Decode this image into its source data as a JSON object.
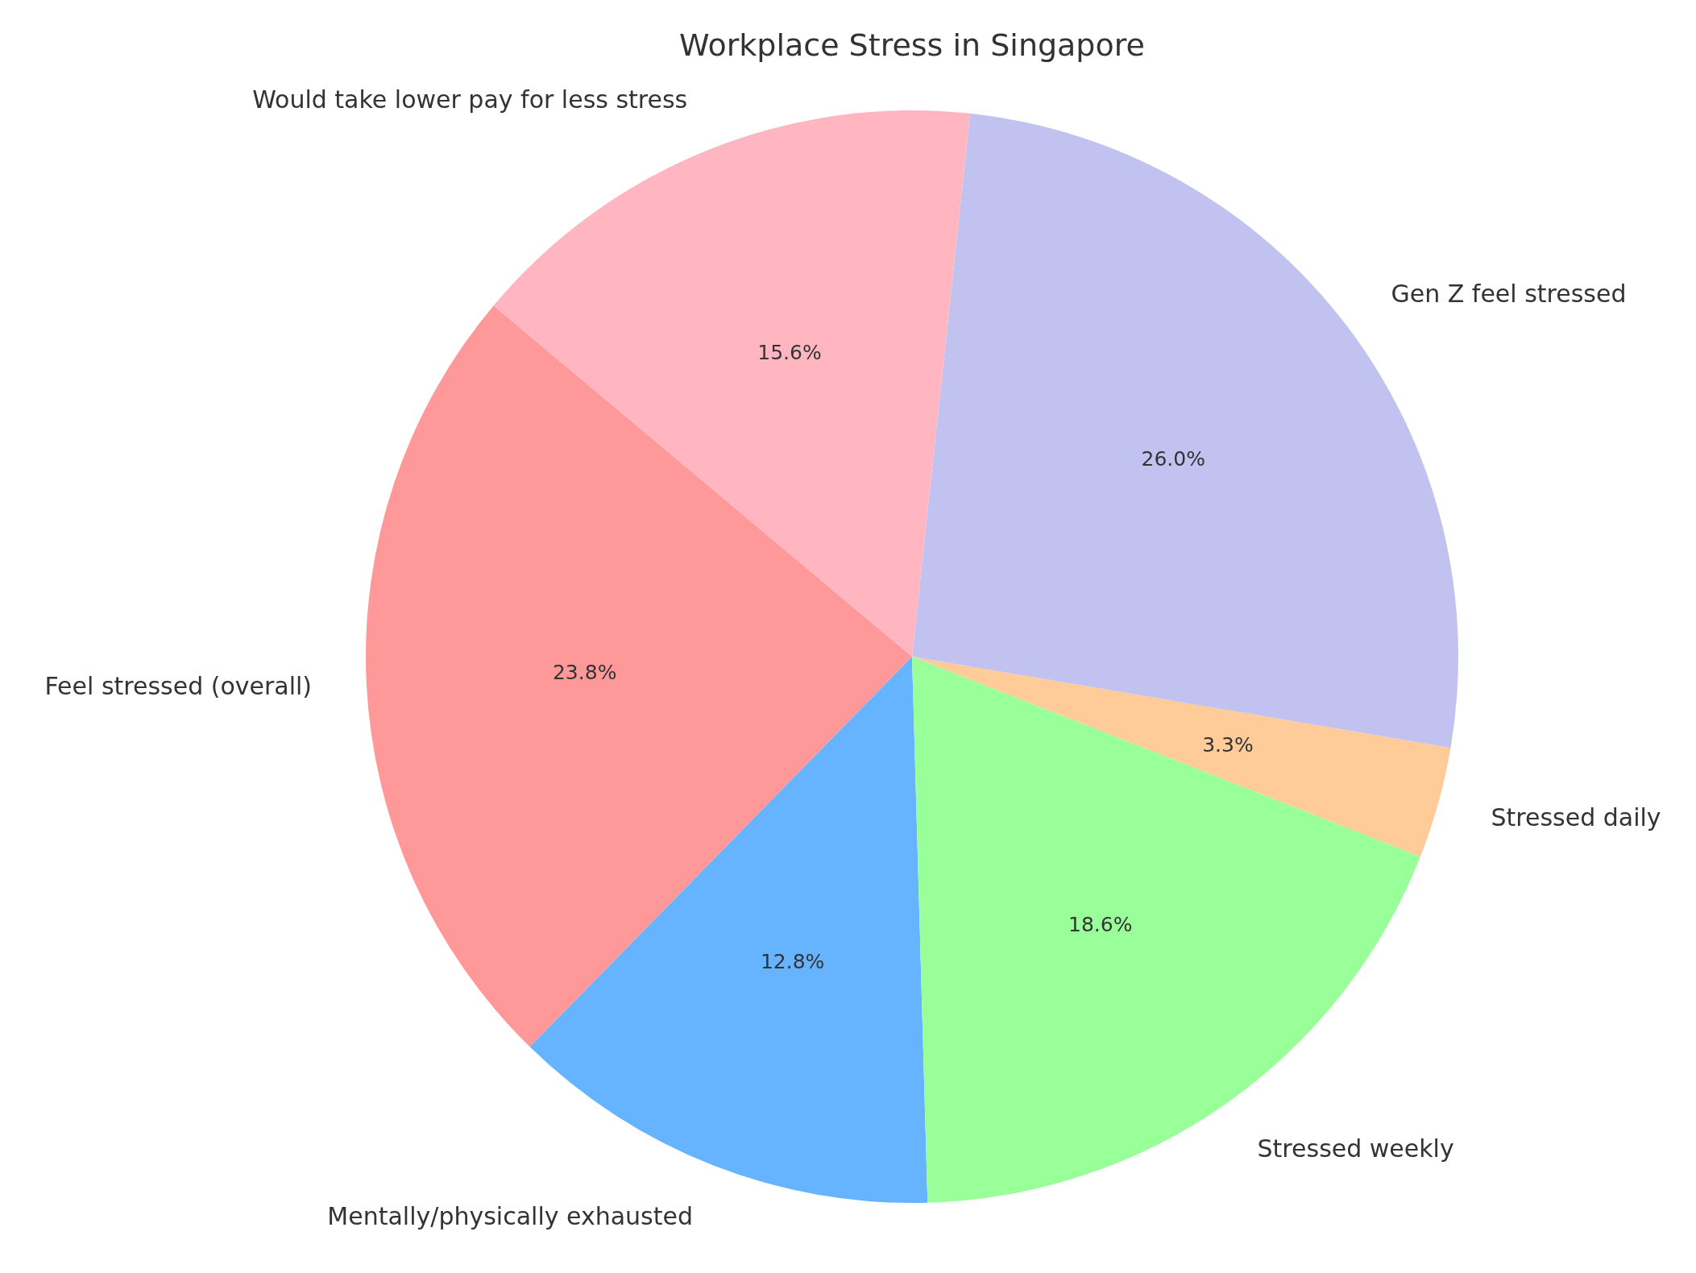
{
  "chart_data": {
    "type": "pie",
    "title": "Workplace Stress in Singapore",
    "categories": [
      "Feel stressed (overall)",
      "Mentally/physically exhausted",
      "Stressed weekly",
      "Stressed daily",
      "Gen Z feel stressed",
      "Would take lower pay for less stress"
    ],
    "values": [
      23.8,
      12.8,
      18.6,
      3.3,
      26.0,
      15.6
    ],
    "colors": [
      "#ff9999",
      "#66b3ff",
      "#99ff99",
      "#ffcc99",
      "#c2c2f0",
      "#ffb6c1"
    ],
    "value_labels": [
      "23.8%",
      "12.8%",
      "18.6%",
      "3.3%",
      "26.0%",
      "15.6%"
    ]
  }
}
